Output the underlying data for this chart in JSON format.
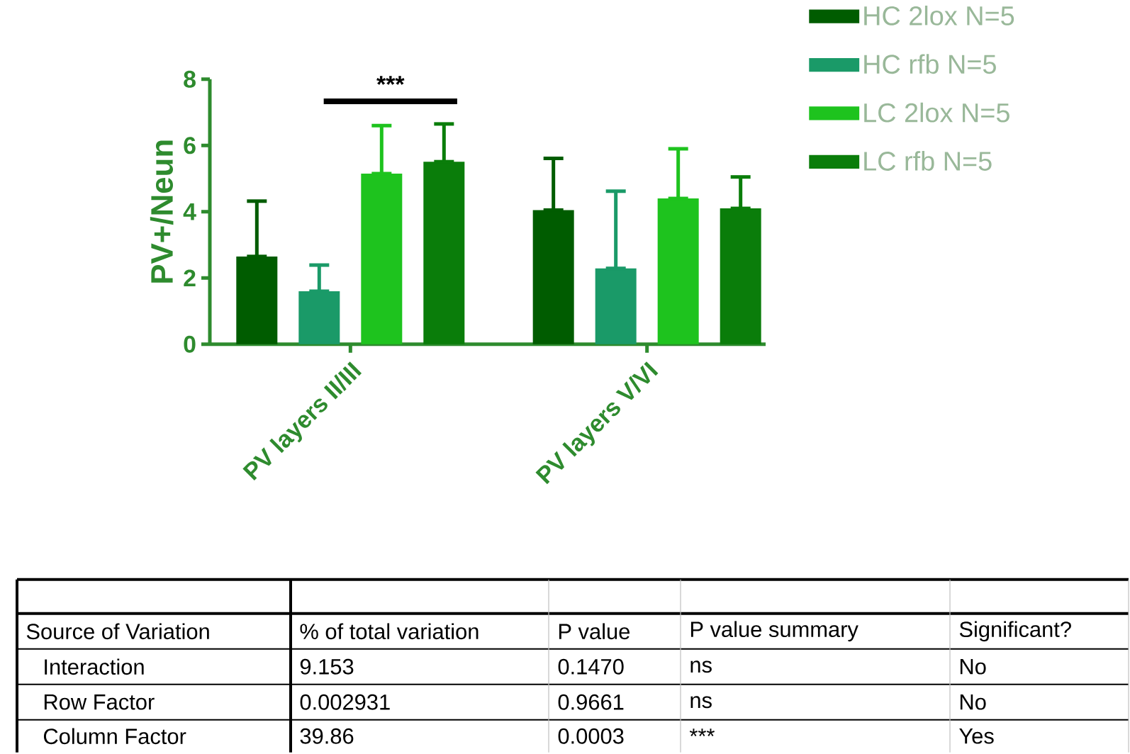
{
  "chart_data": {
    "type": "bar",
    "ylabel": "PV+/Neun",
    "categories": [
      "PV layers II/III",
      "PV layers V/VI"
    ],
    "series": [
      {
        "name": "HC 2lox N=5",
        "color": "#005c00",
        "values": [
          2.65,
          4.05
        ],
        "errors": [
          [
            2.65,
            4.32
          ],
          [
            4.05,
            5.61
          ]
        ]
      },
      {
        "name": "HC rfb N=5",
        "color": "#1a9a68",
        "values": [
          1.6,
          2.29
        ],
        "errors": [
          [
            1.6,
            2.39
          ],
          [
            2.29,
            4.62
          ]
        ]
      },
      {
        "name": "LC 2lox N=5",
        "color": "#1ec31e",
        "values": [
          5.15,
          4.4
        ],
        "errors": [
          [
            5.15,
            6.6
          ],
          [
            4.4,
            5.9
          ]
        ]
      },
      {
        "name": "LC rfb N=5",
        "color": "#0a7d0a",
        "values": [
          5.51,
          4.1
        ],
        "errors": [
          [
            5.51,
            6.65
          ],
          [
            4.1,
            5.05
          ]
        ]
      }
    ],
    "ylim": [
      0,
      8
    ],
    "yticks": [
      0,
      2,
      4,
      6,
      8
    ],
    "legend": "right",
    "grid": false,
    "annotations": [
      "***",
      "Source of Variation",
      "% of total variation",
      "P value",
      "P value summary",
      "Significant?",
      "Interaction",
      "9.153",
      "0.1470",
      "ns",
      "No",
      "Row Factor",
      "0.002931",
      "0.9661",
      "ns",
      "No",
      "Column Factor",
      "39.86",
      "0.0003",
      "***",
      "Yes"
    ]
  }
}
